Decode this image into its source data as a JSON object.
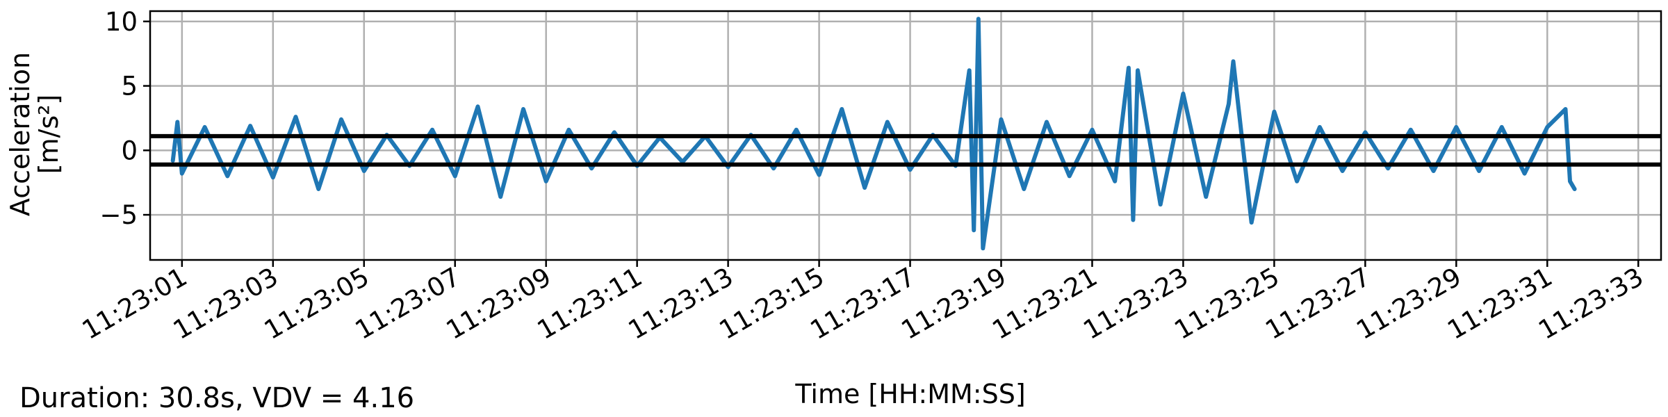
{
  "chart_data": {
    "type": "line",
    "xlabel": "Time [HH:MM:SS]",
    "ylabel": "Acceleration",
    "ylabel_units": "[m/s²]",
    "x_ticks": [
      "11:23:01",
      "11:23:03",
      "11:23:05",
      "11:23:07",
      "11:23:09",
      "11:23:11",
      "11:23:13",
      "11:23:15",
      "11:23:17",
      "11:23:19",
      "11:23:21",
      "11:23:23",
      "11:23:25",
      "11:23:27",
      "11:23:29",
      "11:23:31",
      "11:23:33"
    ],
    "y_ticks": [
      10,
      5,
      0,
      -5
    ],
    "y_tick_labels": [
      "10",
      "5",
      "0",
      "−5"
    ],
    "xlim": [
      "11:23:00.3",
      "11:23:33.5"
    ],
    "ylim": [
      -8.5,
      10.8
    ],
    "grid": true,
    "reference_lines": [
      1.1,
      -1.1
    ],
    "colors": {
      "series": "#1f77b4",
      "reference_lines": "#000000",
      "grid": "#b0b0b0"
    },
    "series": [
      {
        "x": [
          "11:23:00.8",
          "11:23:00.9",
          "11:23:01.0",
          "11:23:01.5",
          "11:23:02.0",
          "11:23:02.5",
          "11:23:03.0",
          "11:23:03.5",
          "11:23:04.0",
          "11:23:04.5",
          "11:23:05.0",
          "11:23:05.5",
          "11:23:06.0",
          "11:23:06.5",
          "11:23:07.0",
          "11:23:07.5",
          "11:23:08.0",
          "11:23:08.5",
          "11:23:09.0",
          "11:23:09.5",
          "11:23:10.0",
          "11:23:10.5",
          "11:23:11.0",
          "11:23:11.5",
          "11:23:12.0",
          "11:23:12.5",
          "11:23:13.0",
          "11:23:13.5",
          "11:23:14.0",
          "11:23:14.5",
          "11:23:15.0",
          "11:23:15.5",
          "11:23:16.0",
          "11:23:16.5",
          "11:23:17.0",
          "11:23:17.5",
          "11:23:18.0",
          "11:23:18.3",
          "11:23:18.4",
          "11:23:18.5",
          "11:23:18.6",
          "11:23:19.0",
          "11:23:19.5",
          "11:23:20.0",
          "11:23:20.5",
          "11:23:21.0",
          "11:23:21.5",
          "11:23:21.8",
          "11:23:21.9",
          "11:23:22.0",
          "11:23:22.5",
          "11:23:23.0",
          "11:23:23.5",
          "11:23:24.0",
          "11:23:24.1",
          "11:23:24.5",
          "11:23:25.0",
          "11:23:25.5",
          "11:23:26.0",
          "11:23:26.5",
          "11:23:27.0",
          "11:23:27.5",
          "11:23:28.0",
          "11:23:28.5",
          "11:23:29.0",
          "11:23:29.5",
          "11:23:30.0",
          "11:23:30.5",
          "11:23:31.0",
          "11:23:31.4",
          "11:23:31.5",
          "11:23:31.6"
        ],
        "y": [
          -0.8,
          2.2,
          -1.8,
          1.8,
          -2.0,
          1.9,
          -2.1,
          2.6,
          -3.0,
          2.4,
          -1.6,
          1.2,
          -1.2,
          1.6,
          -2.0,
          3.4,
          -3.6,
          3.2,
          -2.4,
          1.6,
          -1.4,
          1.4,
          -1.2,
          1.0,
          -0.9,
          1.1,
          -1.3,
          1.2,
          -1.4,
          1.6,
          -1.9,
          3.2,
          -2.9,
          2.2,
          -1.5,
          1.2,
          -1.2,
          6.2,
          -6.2,
          10.2,
          -7.6,
          2.4,
          -3.0,
          2.2,
          -2.0,
          1.6,
          -2.4,
          6.4,
          -5.4,
          6.2,
          -4.2,
          4.4,
          -3.6,
          3.6,
          6.9,
          -5.6,
          3.0,
          -2.4,
          1.8,
          -1.6,
          1.4,
          -1.4,
          1.6,
          -1.6,
          1.8,
          -1.6,
          1.8,
          -1.8,
          1.8,
          3.2,
          -2.4,
          -3.0
        ]
      }
    ]
  },
  "annotation": {
    "footer": "Duration: 30.8s, VDV = 4.16"
  }
}
